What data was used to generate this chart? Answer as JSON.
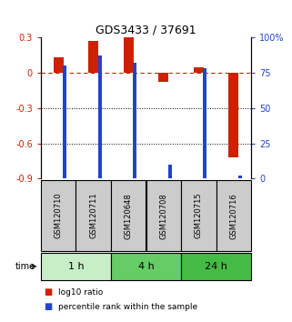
{
  "title": "GDS3433 / 37691",
  "samples": [
    "GSM120710",
    "GSM120711",
    "GSM120648",
    "GSM120708",
    "GSM120715",
    "GSM120716"
  ],
  "log10_ratio": [
    0.13,
    0.27,
    0.3,
    -0.08,
    0.04,
    -0.72
  ],
  "percentile_rank": [
    80,
    87,
    82,
    10,
    78,
    2
  ],
  "ylim_left": [
    -0.9,
    0.3
  ],
  "ylim_right": [
    0,
    100
  ],
  "yticks_left": [
    -0.9,
    -0.6,
    -0.3,
    0.0,
    0.3
  ],
  "yticks_right": [
    0,
    25,
    50,
    75,
    100
  ],
  "ytick_labels_left": [
    "-0.9",
    "-0.6",
    "-0.3",
    "0",
    "0.3"
  ],
  "ytick_labels_right": [
    "0",
    "25",
    "50",
    "75",
    "100%"
  ],
  "hlines": [
    -0.3,
    -0.6
  ],
  "zero_line": 0.0,
  "time_groups": [
    {
      "label": "1 h",
      "start": 0,
      "end": 2,
      "color": "#c8eec8"
    },
    {
      "label": "4 h",
      "start": 2,
      "end": 4,
      "color": "#66cc66"
    },
    {
      "label": "24 h",
      "start": 4,
      "end": 6,
      "color": "#44bb44"
    }
  ],
  "red_color": "#cc2200",
  "blue_color": "#2244cc",
  "sample_box_color": "#cccccc",
  "red_bar_width": 0.28,
  "blue_bar_width": 0.1,
  "legend": [
    {
      "label": "log10 ratio",
      "color": "#cc2200"
    },
    {
      "label": "percentile rank within the sample",
      "color": "#2244cc"
    }
  ]
}
